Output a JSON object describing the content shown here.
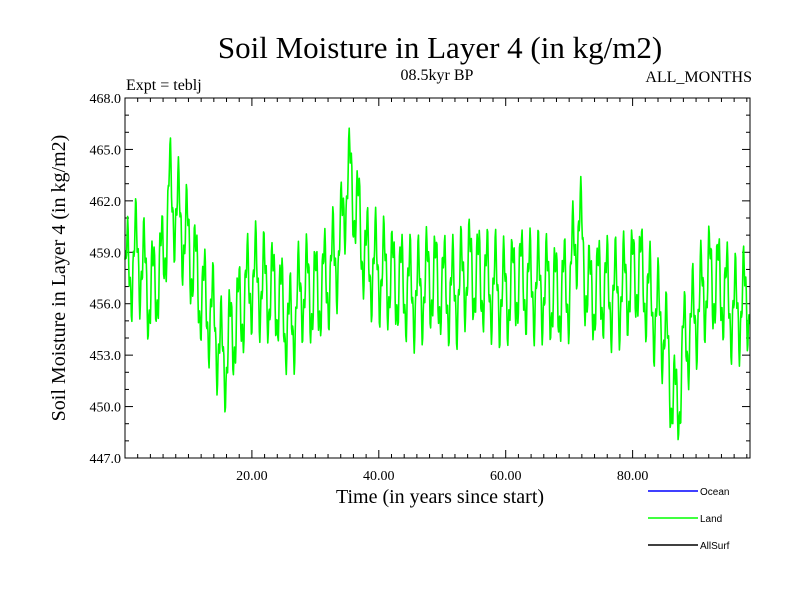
{
  "chart_data": {
    "type": "line",
    "title": "Soil Moisture in Layer 4 (in kg/m2)",
    "subtitle": "08.5kyr BP",
    "left_note": "Expt = teblj",
    "right_note": "ALL_MONTHS",
    "xlabel": "Time (in years since start)",
    "ylabel": "Soil Moisture in Layer 4 (in kg/m2)",
    "xlim": [
      0,
      98.5
    ],
    "ylim": [
      447.0,
      468.0
    ],
    "x_ticks": [
      20,
      40,
      60,
      80
    ],
    "x_tick_labels": [
      "20.00",
      "40.00",
      "60.00",
      "80.00"
    ],
    "y_ticks": [
      447,
      450,
      453,
      456,
      459,
      462,
      465,
      468
    ],
    "y_tick_labels": [
      "447.0",
      "450.0",
      "453.0",
      "456.0",
      "459.0",
      "462.0",
      "465.0",
      "468.0"
    ],
    "legend": [
      {
        "name": "Ocean",
        "color": "#0000ff"
      },
      {
        "name": "Land",
        "color": "#00ff00"
      },
      {
        "name": "AllSurf",
        "color": "#000000"
      }
    ],
    "series": [
      {
        "name": "Land",
        "color": "#00ff00",
        "x": [
          0,
          2,
          4,
          6,
          7,
          8,
          10,
          12,
          14,
          15.5,
          17,
          20,
          22,
          24,
          26,
          28,
          30,
          32,
          34,
          35,
          36,
          38,
          40,
          42,
          44,
          46,
          48,
          50,
          52,
          54,
          56,
          58,
          60,
          62,
          64,
          66,
          68,
          70,
          71.5,
          73,
          75,
          77,
          79,
          81,
          83,
          85,
          86,
          87,
          88,
          90,
          92,
          94,
          96,
          98.5
        ],
        "y": [
          457.5,
          459,
          456.5,
          458.5,
          462.5,
          461.5,
          459.5,
          456.5,
          455,
          452.5,
          454.5,
          457.5,
          457,
          456.5,
          454.5,
          457,
          456.5,
          457.5,
          459.5,
          463.5,
          462.5,
          458.5,
          458,
          457.5,
          457,
          456.5,
          457.5,
          457,
          456.5,
          458,
          457.5,
          457,
          456.5,
          457.5,
          457,
          457,
          456.5,
          457,
          461,
          456.5,
          457,
          456.5,
          457,
          458,
          456,
          454.5,
          451.5,
          449.5,
          453.5,
          455.5,
          457.5,
          457,
          455.5,
          456.5
        ]
      }
    ]
  }
}
